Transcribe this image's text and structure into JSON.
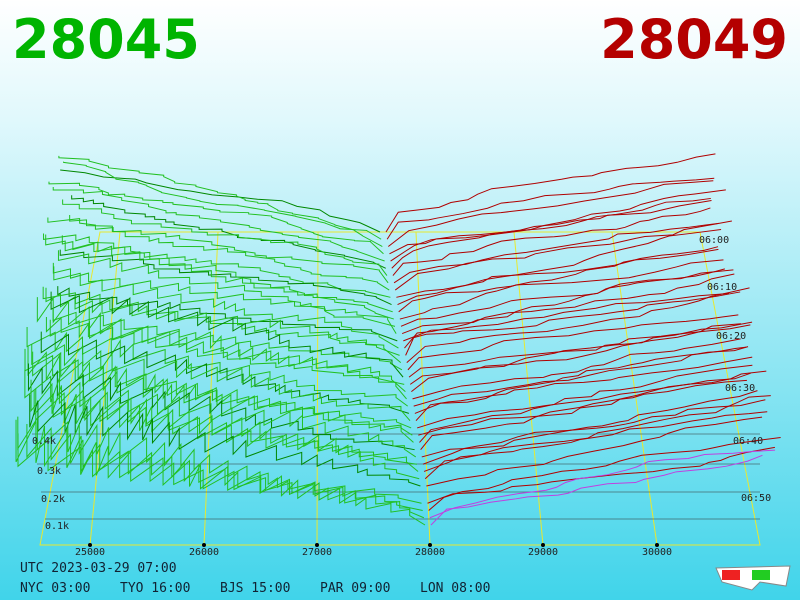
{
  "header": {
    "bid": "28045",
    "ask": "28049"
  },
  "axis": {
    "price_labels": [
      "25000",
      "26000",
      "27000",
      "28000",
      "29000",
      "30000"
    ],
    "depth_labels": [
      "0.4k",
      "0.3k",
      "0.2k",
      "0.1k"
    ],
    "time_labels": [
      "06:00",
      "06:10",
      "06:20",
      "06:30",
      "06:40",
      "06:50"
    ]
  },
  "footer": {
    "utc": "UTC 2023-03-29 07:00",
    "clocks": [
      "NYC 03:00",
      "TYO 16:00",
      "BJS 15:00",
      "PAR 09:00",
      "LON 08:00"
    ]
  }
}
